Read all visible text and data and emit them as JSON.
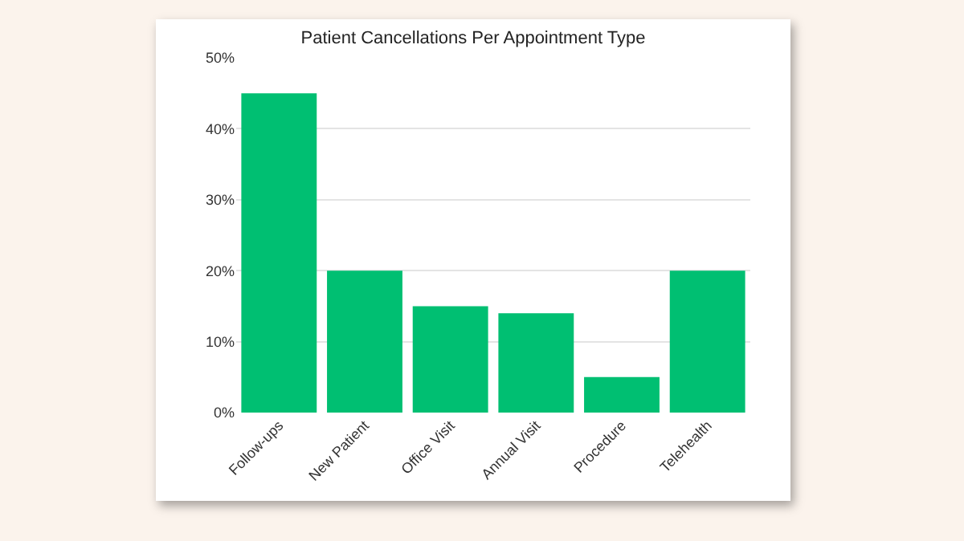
{
  "chart_data": {
    "type": "bar",
    "title": "Patient Cancellations Per Appointment Type",
    "categories": [
      "Follow-ups",
      "New Patient",
      "Office Visit",
      "Annual Visit",
      "Procedure",
      "Telehealth"
    ],
    "values": [
      45,
      20,
      15,
      14,
      5,
      20
    ],
    "color": "#00bf72",
    "ylim": [
      0,
      50
    ],
    "yticks": [
      {
        "value": 0,
        "label": "0%"
      },
      {
        "value": 10,
        "label": "10%"
      },
      {
        "value": 20,
        "label": "20%"
      },
      {
        "value": 30,
        "label": "30%"
      },
      {
        "value": 40,
        "label": "40%"
      },
      {
        "value": 50,
        "label": "50%"
      }
    ],
    "grid": "y"
  }
}
